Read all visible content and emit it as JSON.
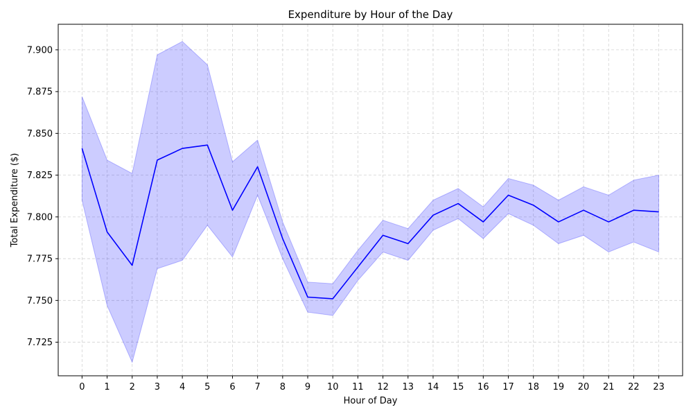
{
  "chart_data": {
    "type": "line",
    "title": "Expenditure by Hour of the Day",
    "xlabel": "Hour of Day",
    "ylabel": "Total Expenditure ($)",
    "x": [
      0,
      1,
      2,
      3,
      4,
      5,
      6,
      7,
      8,
      9,
      10,
      11,
      12,
      13,
      14,
      15,
      16,
      17,
      18,
      19,
      20,
      21,
      22,
      23
    ],
    "x_tick_labels": [
      "0",
      "1",
      "2",
      "3",
      "4",
      "5",
      "6",
      "7",
      "8",
      "9",
      "10",
      "11",
      "12",
      "13",
      "14",
      "15",
      "16",
      "17",
      "18",
      "19",
      "20",
      "21",
      "22",
      "23"
    ],
    "series": [
      {
        "values": [
          7.841,
          7.791,
          7.771,
          7.834,
          7.841,
          7.843,
          7.804,
          7.83,
          7.787,
          7.752,
          7.751,
          7.77,
          7.789,
          7.784,
          7.801,
          7.808,
          7.797,
          7.813,
          7.807,
          7.797,
          7.804,
          7.797,
          7.804,
          7.803
        ],
        "lower": [
          7.81,
          7.747,
          7.713,
          7.769,
          7.774,
          7.795,
          7.776,
          7.813,
          7.775,
          7.743,
          7.741,
          7.762,
          7.779,
          7.774,
          7.792,
          7.799,
          7.787,
          7.802,
          7.795,
          7.784,
          7.789,
          7.779,
          7.785,
          7.779
        ],
        "upper": [
          7.872,
          7.834,
          7.826,
          7.897,
          7.905,
          7.891,
          7.833,
          7.846,
          7.797,
          7.761,
          7.76,
          7.78,
          7.798,
          7.793,
          7.81,
          7.817,
          7.806,
          7.823,
          7.819,
          7.81,
          7.818,
          7.813,
          7.822,
          7.825
        ],
        "color": "#0000ff",
        "band_color": "#0000ff"
      }
    ],
    "xlim": [
      -0.95,
      23.95
    ],
    "ylim": [
      7.7049,
      7.9153
    ],
    "y_ticks": [
      7.725,
      7.75,
      7.775,
      7.8,
      7.825,
      7.85,
      7.875,
      7.9
    ],
    "y_tick_labels": [
      "7.725",
      "7.750",
      "7.775",
      "7.800",
      "7.825",
      "7.850",
      "7.875",
      "7.900"
    ],
    "grid": true,
    "grid_color": "#b0b0b0"
  }
}
